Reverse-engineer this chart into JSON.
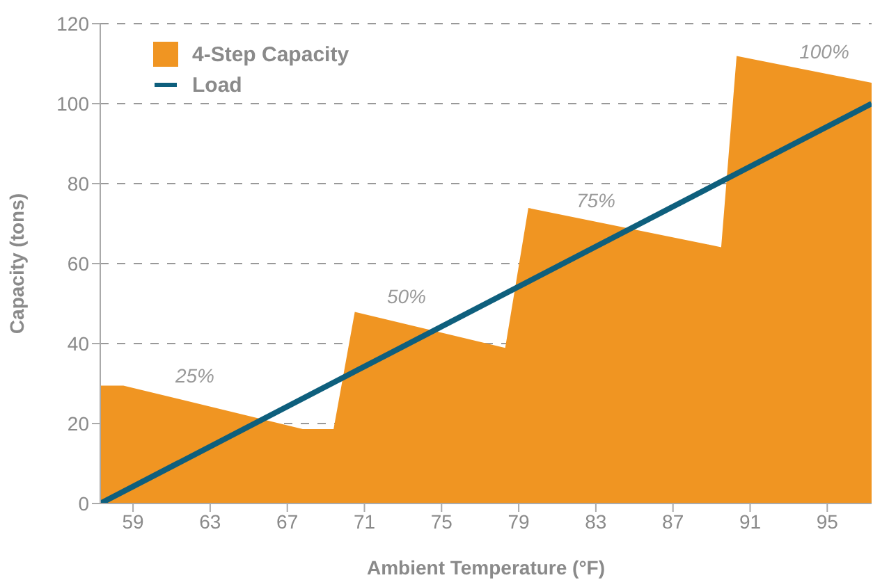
{
  "chart_data": {
    "type": "area",
    "xlabel": "Ambient Temperature (°F)",
    "ylabel": "Capacity (tons)",
    "xlim": [
      57.3,
      97.3
    ],
    "xticks": [
      59,
      63,
      67,
      71,
      75,
      79,
      83,
      87,
      91,
      95
    ],
    "ylim": [
      0,
      120
    ],
    "yticks": [
      0,
      20,
      40,
      60,
      80,
      100,
      120
    ],
    "grid": "y",
    "legend": "top left",
    "series": [
      {
        "name": "4-Step Capacity",
        "color": "#f09522",
        "x": [
          57.3,
          58.5,
          67.8,
          69.4,
          70.5,
          78.3,
          79.5,
          89.5,
          90.3,
          97.3
        ],
        "values": [
          29.5,
          29.5,
          18.6,
          18.6,
          47.9,
          38.9,
          73.9,
          64.1,
          111.9,
          105.2
        ]
      },
      {
        "name": "Load",
        "type": "line",
        "color": "#0e5f7d",
        "x": [
          57.3,
          97.3
        ],
        "values": [
          0,
          100
        ]
      }
    ],
    "annotations": [
      "25%",
      "50%",
      "75%",
      "100%"
    ]
  }
}
